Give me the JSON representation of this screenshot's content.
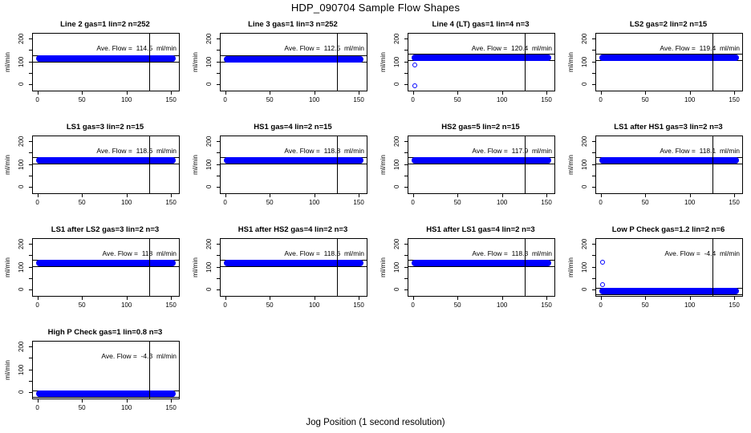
{
  "figure": {
    "title": "HDP_090704  Sample Flow Shapes",
    "xlabel": "Jog Position (1 second resolution)"
  },
  "chart_data": {
    "type": "scatter",
    "title": "HDP_090704  Sample Flow Shapes",
    "xlabel": "Jog Position (1 second resolution)",
    "ylabel": "ml/min",
    "x_ticks": [
      0,
      50,
      100,
      150
    ],
    "y_ticks_all": [
      0,
      50,
      100,
      150,
      200
    ],
    "y_ticks_labeled": [
      0,
      100,
      200
    ],
    "xlim": [
      -6,
      158
    ],
    "ylim": [
      -25,
      225
    ],
    "grid": false,
    "point_color": "#0000FF",
    "vline_x": 125,
    "band_x_range": [
      0,
      152
    ],
    "ref_line_offset": 10,
    "panels": [
      {
        "title": "Line 2 gas=1 lin=2 n=252",
        "gas": 1,
        "lin": 2,
        "n": 252,
        "ave_flow": 114.5,
        "annotation": "Ave. Flow =  114.5  ml/min",
        "outliers": []
      },
      {
        "title": "Line 3 gas=1 lin=3 n=252",
        "gas": 1,
        "lin": 3,
        "n": 252,
        "ave_flow": 112.5,
        "annotation": "Ave. Flow =  112.5  ml/min",
        "outliers": []
      },
      {
        "title": "Line 4 (LT) gas=1 lin=4 n=3",
        "gas": 1,
        "lin": 4,
        "n": 3,
        "ave_flow": 120.4,
        "annotation": "Ave. Flow =  120.4  ml/min",
        "outliers": [
          {
            "x": 2,
            "y": 85
          },
          {
            "x": 2,
            "y": -5
          }
        ]
      },
      {
        "title": "LS2 gas=2 lin=2 n=15",
        "gas": 2,
        "lin": 2,
        "n": 15,
        "ave_flow": 119.4,
        "annotation": "Ave. Flow =  119.4  ml/min",
        "outliers": []
      },
      {
        "title": "LS1 gas=3 lin=2 n=15",
        "gas": 3,
        "lin": 2,
        "n": 15,
        "ave_flow": 118.6,
        "annotation": "Ave. Flow =  118.6  ml/min",
        "outliers": []
      },
      {
        "title": "HS1 gas=4 lin=2 n=15",
        "gas": 4,
        "lin": 2,
        "n": 15,
        "ave_flow": 118.8,
        "annotation": "Ave. Flow =  118.8  ml/min",
        "outliers": []
      },
      {
        "title": "HS2 gas=5 lin=2 n=15",
        "gas": 5,
        "lin": 2,
        "n": 15,
        "ave_flow": 117.9,
        "annotation": "Ave. Flow =  117.9  ml/min",
        "outliers": []
      },
      {
        "title": "LS1 after HS1 gas=3 lin=2 n=3",
        "gas": 3,
        "lin": 2,
        "n": 3,
        "ave_flow": 118.1,
        "annotation": "Ave. Flow =  118.1  ml/min",
        "outliers": []
      },
      {
        "title": "LS1 after LS2 gas=3 lin=2 n=3",
        "gas": 3,
        "lin": 2,
        "n": 3,
        "ave_flow": 118,
        "annotation": "Ave. Flow =  118  ml/min",
        "outliers": []
      },
      {
        "title": "HS1 after HS2 gas=4 lin=2 n=3",
        "gas": 4,
        "lin": 2,
        "n": 3,
        "ave_flow": 118.6,
        "annotation": "Ave. Flow =  118.6  ml/min",
        "outliers": []
      },
      {
        "title": "HS1 after LS1 gas=4 lin=2 n=3",
        "gas": 4,
        "lin": 2,
        "n": 3,
        "ave_flow": 118.3,
        "annotation": "Ave. Flow =  118.3  ml/min",
        "outliers": []
      },
      {
        "title": "Low P Check gas=1.2 lin=2 n=6",
        "gas": 1.2,
        "lin": 2,
        "n": 6,
        "ave_flow": -4.4,
        "annotation": "Ave. Flow =  -4.4  ml/min",
        "outliers": [
          {
            "x": 2,
            "y": 120
          },
          {
            "x": 2,
            "y": 22
          }
        ]
      },
      {
        "title": "High P Check gas=1 lin=0.8 n=3",
        "gas": 1,
        "lin": 0.8,
        "n": 3,
        "ave_flow": -4.3,
        "annotation": "Ave. Flow =  -4.3  ml/min",
        "outliers": []
      }
    ]
  }
}
